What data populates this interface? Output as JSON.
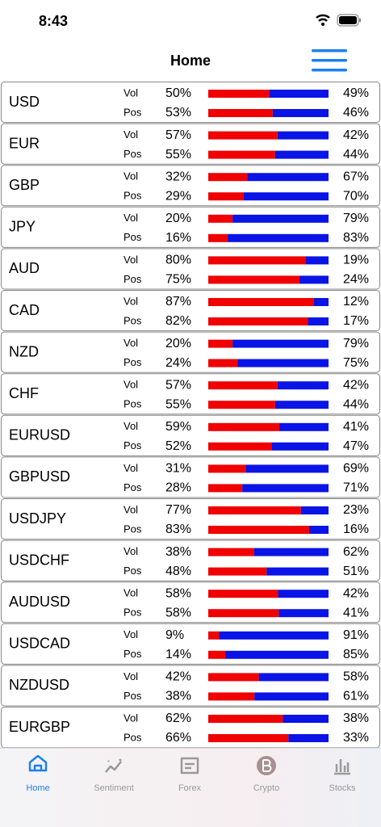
{
  "status": {
    "time": "8:43"
  },
  "header": {
    "title": "Home"
  },
  "row_labels": [
    "Vol",
    "Pos"
  ],
  "rows": [
    {
      "name": "USD",
      "vol": {
        "values": [
          50,
          49
        ],
        "value_labels": [
          "50%",
          "49%"
        ]
      },
      "pos": {
        "values": [
          53,
          46
        ],
        "value_labels": [
          "53%",
          "46%"
        ]
      }
    },
    {
      "name": "EUR",
      "vol": {
        "values": [
          57,
          42
        ],
        "value_labels": [
          "57%",
          "42%"
        ]
      },
      "pos": {
        "values": [
          55,
          44
        ],
        "value_labels": [
          "55%",
          "44%"
        ]
      }
    },
    {
      "name": "GBP",
      "vol": {
        "values": [
          32,
          67
        ],
        "value_labels": [
          "32%",
          "67%"
        ]
      },
      "pos": {
        "values": [
          29,
          70
        ],
        "value_labels": [
          "29%",
          "70%"
        ]
      }
    },
    {
      "name": "JPY",
      "vol": {
        "values": [
          20,
          79
        ],
        "value_labels": [
          "20%",
          "79%"
        ]
      },
      "pos": {
        "values": [
          16,
          83
        ],
        "value_labels": [
          "16%",
          "83%"
        ]
      }
    },
    {
      "name": "AUD",
      "vol": {
        "values": [
          80,
          19
        ],
        "value_labels": [
          "80%",
          "19%"
        ]
      },
      "pos": {
        "values": [
          75,
          24
        ],
        "value_labels": [
          "75%",
          "24%"
        ]
      }
    },
    {
      "name": "CAD",
      "vol": {
        "values": [
          87,
          12
        ],
        "value_labels": [
          "87%",
          "12%"
        ]
      },
      "pos": {
        "values": [
          82,
          17
        ],
        "value_labels": [
          "82%",
          "17%"
        ]
      }
    },
    {
      "name": "NZD",
      "vol": {
        "values": [
          20,
          79
        ],
        "value_labels": [
          "20%",
          "79%"
        ]
      },
      "pos": {
        "values": [
          24,
          75
        ],
        "value_labels": [
          "24%",
          "75%"
        ]
      }
    },
    {
      "name": "CHF",
      "vol": {
        "values": [
          57,
          42
        ],
        "value_labels": [
          "57%",
          "42%"
        ]
      },
      "pos": {
        "values": [
          55,
          44
        ],
        "value_labels": [
          "55%",
          "44%"
        ]
      }
    },
    {
      "name": "EURUSD",
      "vol": {
        "values": [
          59,
          41
        ],
        "value_labels": [
          "59%",
          "41%"
        ]
      },
      "pos": {
        "values": [
          52,
          47
        ],
        "value_labels": [
          "52%",
          "47%"
        ]
      }
    },
    {
      "name": "GBPUSD",
      "vol": {
        "values": [
          31,
          69
        ],
        "value_labels": [
          "31%",
          "69%"
        ]
      },
      "pos": {
        "values": [
          28,
          71
        ],
        "value_labels": [
          "28%",
          "71%"
        ]
      }
    },
    {
      "name": "USDJPY",
      "vol": {
        "values": [
          77,
          23
        ],
        "value_labels": [
          "77%",
          "23%"
        ]
      },
      "pos": {
        "values": [
          83,
          16
        ],
        "value_labels": [
          "83%",
          "16%"
        ]
      }
    },
    {
      "name": "USDCHF",
      "vol": {
        "values": [
          38,
          62
        ],
        "value_labels": [
          "38%",
          "62%"
        ]
      },
      "pos": {
        "values": [
          48,
          51
        ],
        "value_labels": [
          "48%",
          "51%"
        ]
      }
    },
    {
      "name": "AUDUSD",
      "vol": {
        "values": [
          58,
          42
        ],
        "value_labels": [
          "58%",
          "42%"
        ]
      },
      "pos": {
        "values": [
          58,
          41
        ],
        "value_labels": [
          "58%",
          "41%"
        ]
      }
    },
    {
      "name": "USDCAD",
      "vol": {
        "values": [
          9,
          91
        ],
        "value_labels": [
          "9%",
          "91%"
        ]
      },
      "pos": {
        "values": [
          14,
          85
        ],
        "value_labels": [
          "14%",
          "85%"
        ]
      }
    },
    {
      "name": "NZDUSD",
      "vol": {
        "values": [
          42,
          58
        ],
        "value_labels": [
          "42%",
          "58%"
        ]
      },
      "pos": {
        "values": [
          38,
          61
        ],
        "value_labels": [
          "38%",
          "61%"
        ]
      }
    },
    {
      "name": "EURGBP",
      "vol": {
        "values": [
          62,
          38
        ],
        "value_labels": [
          "62%",
          "38%"
        ]
      },
      "pos": {
        "values": [
          66,
          33
        ],
        "value_labels": [
          "66%",
          "33%"
        ]
      }
    }
  ],
  "tabs": [
    "Home",
    "Sentiment",
    "Forex",
    "Crypto",
    "Stocks"
  ]
}
